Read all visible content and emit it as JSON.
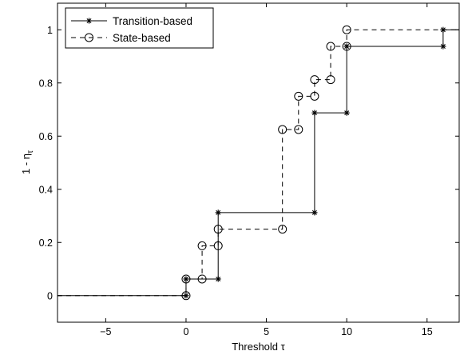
{
  "chart_data": {
    "type": "line",
    "xlabel": "Threshold τ",
    "ylabel_main": "1 - η",
    "ylabel_sub": "τ",
    "xlim": [
      -8,
      17
    ],
    "ylim": [
      -0.1,
      1.1
    ],
    "xticks": [
      -5,
      0,
      5,
      10,
      15
    ],
    "yticks": [
      0,
      0.2,
      0.4,
      0.6,
      0.8,
      1
    ],
    "grid": false,
    "legend_position": "top-left",
    "series": [
      {
        "name": "Transition-based",
        "style": "solid",
        "marker": "star",
        "color": "#000000",
        "step_x": [
          -8,
          0,
          0,
          2,
          2,
          8,
          8,
          10,
          10,
          16,
          16,
          17
        ],
        "step_y": [
          0,
          0,
          0.0625,
          0.0625,
          0.3125,
          0.3125,
          0.6875,
          0.6875,
          0.9375,
          0.9375,
          1.0,
          1.0
        ],
        "markers": [
          [
            0,
            0
          ],
          [
            0,
            0.0625
          ],
          [
            2,
            0.0625
          ],
          [
            2,
            0.3125
          ],
          [
            8,
            0.3125
          ],
          [
            8,
            0.6875
          ],
          [
            10,
            0.6875
          ],
          [
            10,
            0.9375
          ],
          [
            16,
            0.9375
          ],
          [
            16,
            1.0
          ]
        ]
      },
      {
        "name": "State-based",
        "style": "dashed",
        "marker": "circle",
        "color": "#000000",
        "step_x": [
          -8,
          0,
          0,
          1,
          1,
          2,
          2,
          6,
          6,
          7,
          7,
          8,
          8,
          9,
          9,
          10,
          10,
          17
        ],
        "step_y": [
          0,
          0,
          0.0625,
          0.0625,
          0.1875,
          0.1875,
          0.25,
          0.25,
          0.625,
          0.625,
          0.75,
          0.75,
          0.8125,
          0.8125,
          0.9375,
          0.9375,
          1.0,
          1.0
        ],
        "markers": [
          [
            0,
            0
          ],
          [
            0,
            0.0625
          ],
          [
            1,
            0.0625
          ],
          [
            1,
            0.1875
          ],
          [
            2,
            0.1875
          ],
          [
            2,
            0.25
          ],
          [
            6,
            0.25
          ],
          [
            6,
            0.625
          ],
          [
            7,
            0.625
          ],
          [
            7,
            0.75
          ],
          [
            8,
            0.75
          ],
          [
            8,
            0.8125
          ],
          [
            9,
            0.8125
          ],
          [
            9,
            0.9375
          ],
          [
            10,
            0.9375
          ],
          [
            10,
            1.0
          ]
        ]
      }
    ]
  }
}
